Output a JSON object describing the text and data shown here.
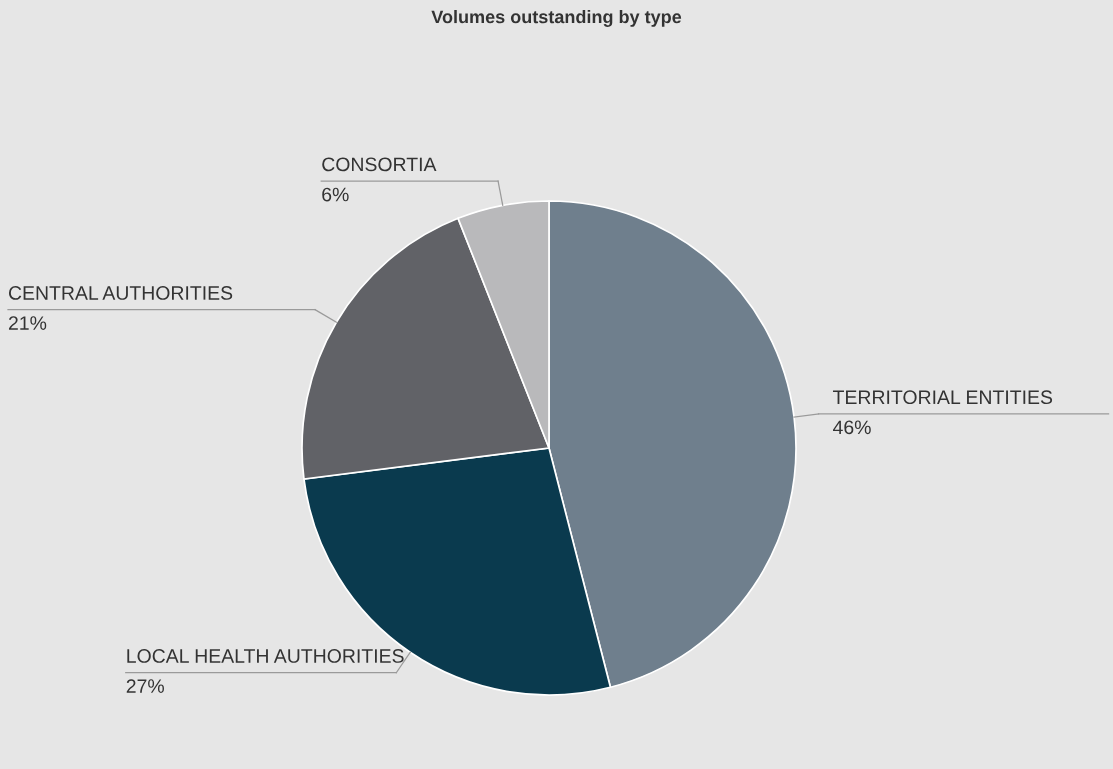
{
  "chart_data": {
    "type": "pie",
    "title": "Volumes outstanding by type",
    "categories": [
      "TERRITORIAL ENTITIES",
      "LOCAL HEALTH AUTHORITIES",
      "CENTRAL AUTHORITIES",
      "CONSORTIA"
    ],
    "values": [
      46,
      27,
      21,
      6
    ],
    "colors": [
      "#6f7f8d",
      "#0a3a4e",
      "#616267",
      "#b9b9bb"
    ],
    "value_labels": [
      "46%",
      "27%",
      "21%",
      "6%"
    ]
  }
}
